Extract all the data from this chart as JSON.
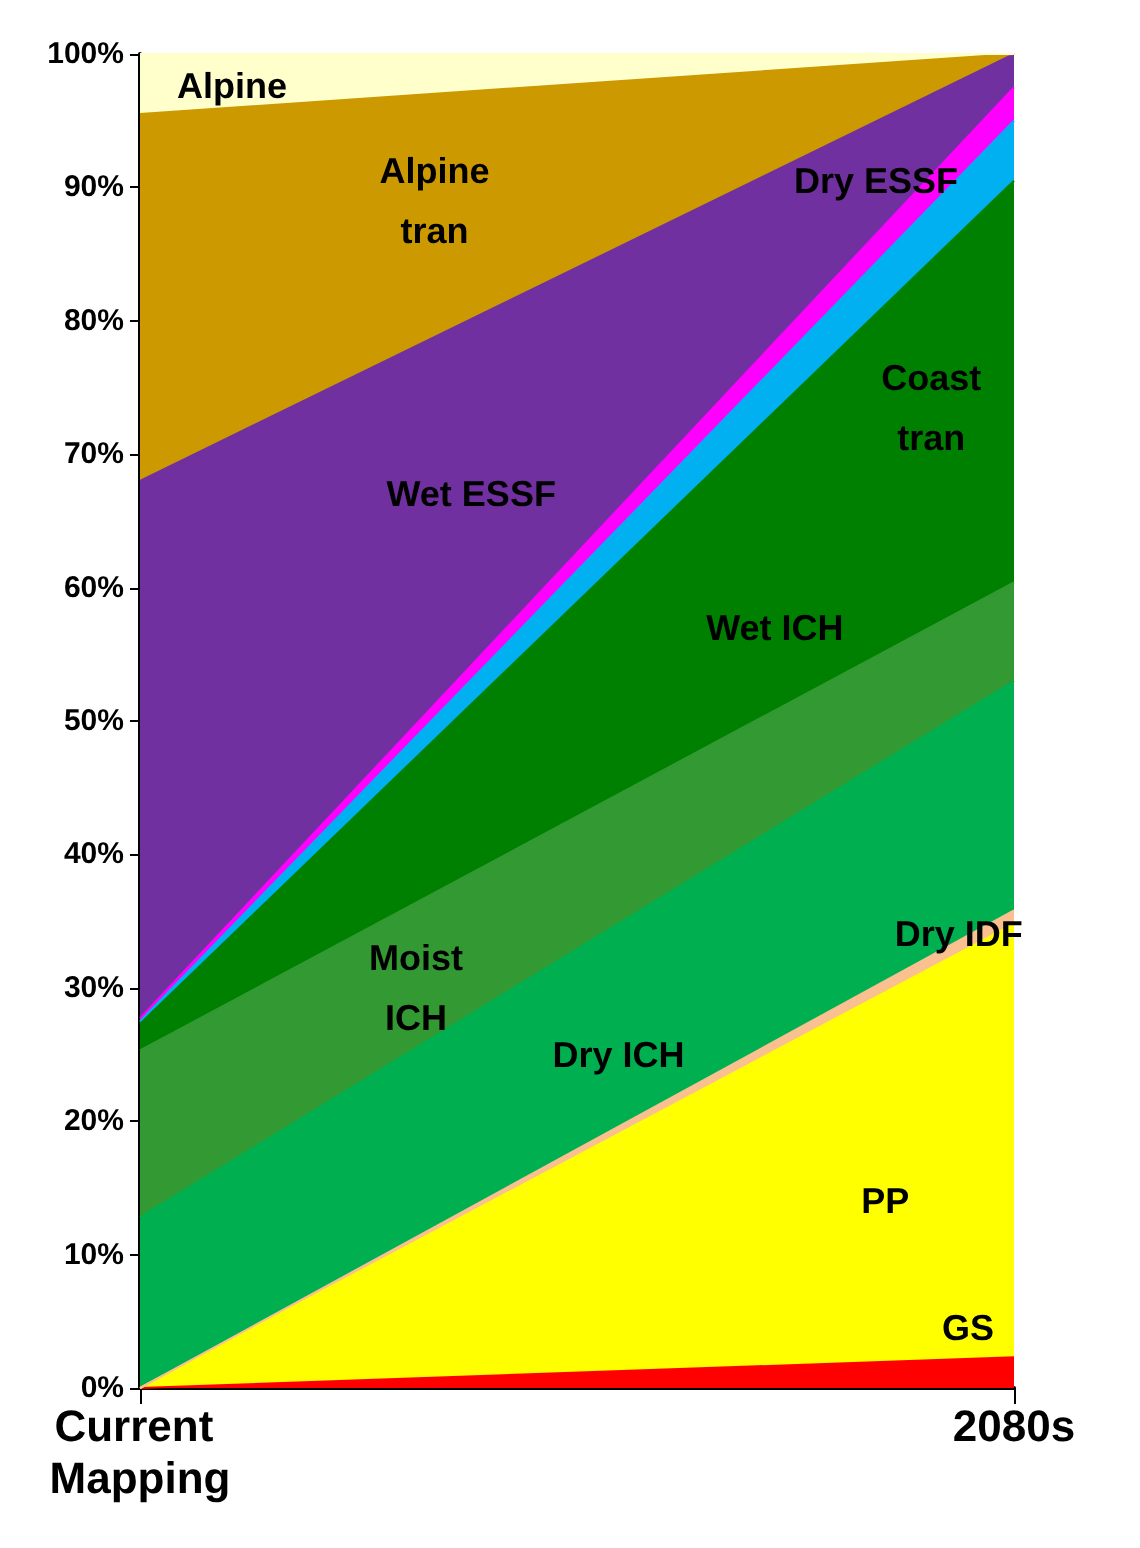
{
  "chart_data": {
    "type": "area",
    "stacked": true,
    "categories": [
      "Current Mapping",
      "2080s"
    ],
    "series": [
      {
        "name": "GS",
        "color": "#ff0000",
        "values": [
          0,
          2.3
        ]
      },
      {
        "name": "PP",
        "color": "#ffff00",
        "values": [
          0,
          32.5
        ]
      },
      {
        "name": "Dry IDF",
        "color": "#fac090",
        "values": [
          0,
          1
        ]
      },
      {
        "name": "Dry ICH",
        "color": "#00b050",
        "values": [
          12.8,
          17.2
        ]
      },
      {
        "name": "Moist ICH",
        "color": "#339933",
        "values": [
          12.5,
          7.4
        ]
      },
      {
        "name": "Wet ICH",
        "color": "#008000",
        "values": [
          2,
          30.1
        ]
      },
      {
        "name": "Coast tran",
        "color": "#00b0f0",
        "values": [
          0.2,
          4.5
        ]
      },
      {
        "name": "Dry ESSF",
        "color": "#ff00ff",
        "values": [
          0.2,
          2.5
        ]
      },
      {
        "name": "Wet ESSF",
        "color": "#7030a0",
        "values": [
          40.3,
          2.5
        ]
      },
      {
        "name": "Alpine tran",
        "color": "#cc9900",
        "values": [
          27.5,
          0
        ]
      },
      {
        "name": "Alpine",
        "color": "#ffffcc",
        "values": [
          4.5,
          0
        ]
      }
    ],
    "ylim": [
      0,
      100
    ],
    "yticks": [
      {
        "value": 0,
        "label": "0%"
      },
      {
        "value": 10,
        "label": "10%"
      },
      {
        "value": 20,
        "label": "20%"
      },
      {
        "value": 30,
        "label": "30%"
      },
      {
        "value": 40,
        "label": "40%"
      },
      {
        "value": 50,
        "label": "50%"
      },
      {
        "value": 60,
        "label": "60%"
      },
      {
        "value": 70,
        "label": "70%"
      },
      {
        "value": 80,
        "label": "80%"
      },
      {
        "value": 90,
        "label": "90%"
      },
      {
        "value": 100,
        "label": "100%"
      }
    ],
    "grid": false,
    "legend": false,
    "marker": "none"
  }
}
